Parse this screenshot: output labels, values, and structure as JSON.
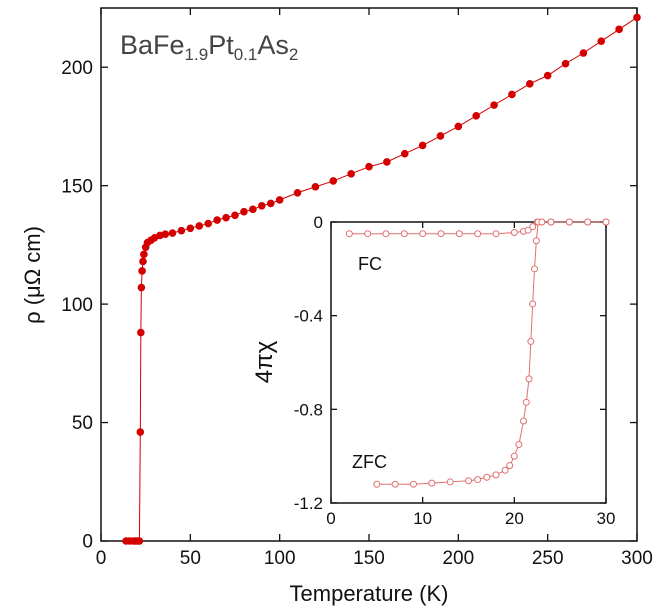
{
  "chart_data": [
    {
      "type": "scatter",
      "annotation_parts": [
        "BaFe",
        "1.9",
        "Pt",
        "0.1",
        "As",
        "2"
      ],
      "x_label": "Temperature (K)",
      "y_label": "ρ (μΩ cm)",
      "x": [
        14,
        16,
        18,
        19,
        20,
        21,
        21.5,
        22,
        22.3,
        22.6,
        23,
        23.5,
        24,
        25,
        26,
        28,
        30,
        33,
        36,
        40,
        45,
        50,
        55,
        60,
        65,
        70,
        75,
        80,
        85,
        90,
        95,
        100,
        110,
        120,
        130,
        140,
        150,
        160,
        170,
        180,
        190,
        200,
        210,
        220,
        230,
        240,
        250,
        260,
        270,
        280,
        290,
        300
      ],
      "series": [
        {
          "color": "#d40000",
          "values": [
            0,
            0,
            0,
            0,
            0,
            0,
            0,
            46,
            88,
            107,
            114,
            118,
            121,
            124,
            126,
            127,
            128,
            129,
            129.5,
            130,
            131,
            132,
            133,
            134,
            135.5,
            136.5,
            137.5,
            139,
            140,
            141.5,
            142.5,
            144,
            147,
            149.5,
            152,
            155,
            158,
            160,
            163.5,
            167,
            171,
            175,
            179.5,
            184,
            188.5,
            193,
            196.5,
            201.5,
            206,
            211,
            216,
            221
          ]
        }
      ],
      "xlim": [
        0,
        300
      ],
      "xticks": [
        0,
        50,
        100,
        150,
        200,
        250,
        300
      ],
      "ylim": [
        0,
        225
      ],
      "yticks": [
        0,
        50,
        100,
        150,
        200
      ],
      "marker": "filled"
    },
    {
      "type": "scatter",
      "y_label": "4πχ",
      "series": [
        {
          "name": "FC",
          "color": "#e07070",
          "x": [
            2,
            4,
            6,
            8,
            10,
            12,
            14,
            16,
            18,
            20,
            21,
            21.5,
            22,
            22.5,
            23,
            24,
            26,
            28,
            30
          ],
          "values": [
            -0.05,
            -0.05,
            -0.05,
            -0.05,
            -0.05,
            -0.05,
            -0.05,
            -0.05,
            -0.05,
            -0.045,
            -0.04,
            -0.035,
            -0.02,
            0,
            0,
            0,
            0,
            0,
            0
          ]
        },
        {
          "name": "ZFC",
          "color": "#e07070",
          "x": [
            5,
            7,
            9,
            11,
            13,
            15,
            16,
            17,
            18,
            19,
            19.5,
            20,
            20.5,
            21,
            21.3,
            21.6,
            21.8,
            22,
            22.2,
            22.4,
            22.6,
            23,
            24,
            26,
            28,
            30
          ],
          "values": [
            -1.12,
            -1.12,
            -1.12,
            -1.115,
            -1.11,
            -1.105,
            -1.1,
            -1.09,
            -1.08,
            -1.06,
            -1.04,
            -1.0,
            -0.95,
            -0.85,
            -0.77,
            -0.67,
            -0.51,
            -0.35,
            -0.2,
            -0.08,
            0,
            0,
            0,
            0,
            0,
            0
          ]
        }
      ],
      "xlim": [
        0,
        30
      ],
      "xticks": [
        0,
        10,
        20,
        30
      ],
      "ylim": [
        -1.2,
        0
      ],
      "yticks": [
        0,
        -0.4,
        -0.8,
        -1.2
      ],
      "marker": "hollow"
    }
  ]
}
